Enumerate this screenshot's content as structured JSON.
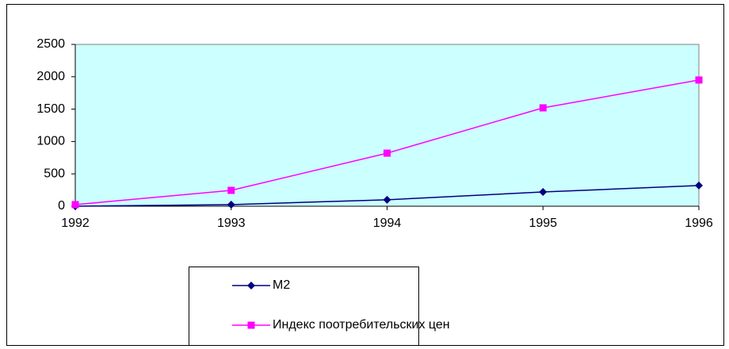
{
  "chart_data": {
    "type": "line",
    "categories": [
      "1992",
      "1993",
      "1994",
      "1995",
      "1996"
    ],
    "series": [
      {
        "name": "M2",
        "color": "#000080",
        "marker": "diamond",
        "values": [
          0,
          25,
          100,
          220,
          320
        ]
      },
      {
        "name": "Индекс поотребительских цен",
        "color": "#ff00ff",
        "marker": "square",
        "values": [
          25,
          245,
          820,
          1520,
          1950
        ]
      }
    ],
    "ylim": [
      0,
      2500
    ],
    "yticks": [
      0,
      500,
      1000,
      1500,
      2000,
      2500
    ],
    "grid": false,
    "legend": "bottom"
  }
}
